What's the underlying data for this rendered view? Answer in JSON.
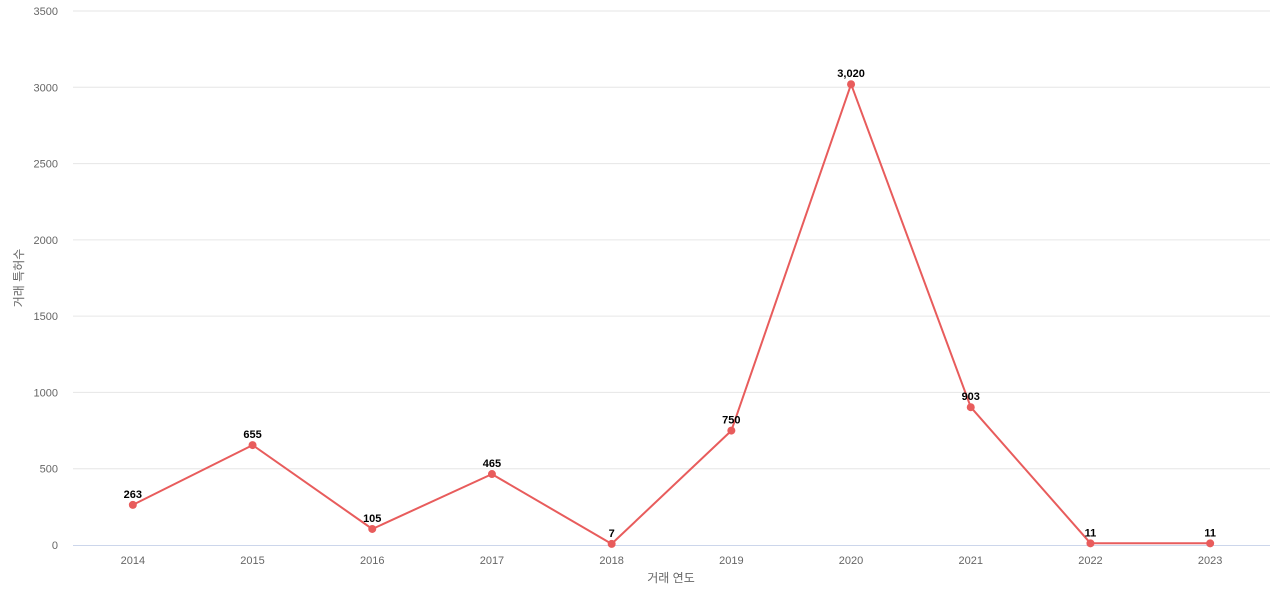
{
  "chart_data": {
    "type": "line",
    "xlabel": "거래 연도",
    "ylabel": "거래 특허수",
    "ylim": [
      0,
      3500
    ],
    "y_ticks": [
      0,
      500,
      1000,
      1500,
      2000,
      2500,
      3000,
      3500
    ],
    "grid": true,
    "legend": "none",
    "categories": [
      "2014",
      "2015",
      "2016",
      "2017",
      "2018",
      "2019",
      "2020",
      "2021",
      "2022",
      "2023"
    ],
    "series": [
      {
        "values": [
          263,
          655,
          105,
          465,
          7,
          750,
          3020,
          903,
          11,
          11
        ],
        "labels": [
          "263",
          "655",
          "105",
          "465",
          "7",
          "750",
          "3,020",
          "903",
          "11",
          "11"
        ],
        "color": "#e85c5c"
      }
    ]
  }
}
